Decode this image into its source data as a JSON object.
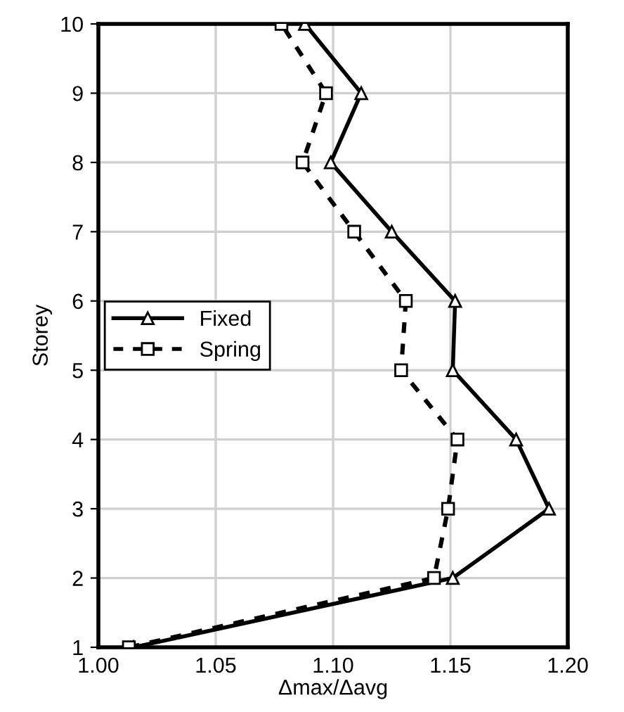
{
  "chart_data": {
    "type": "line",
    "xlabel": "Δmax/Δavg",
    "ylabel": "Storey",
    "xlim": [
      1.0,
      1.2
    ],
    "xticks": [
      {
        "value": 1.0,
        "label": "1.00"
      },
      {
        "value": 1.05,
        "label": "1.05"
      },
      {
        "value": 1.1,
        "label": "1.10"
      },
      {
        "value": 1.15,
        "label": "1.15"
      },
      {
        "value": 1.2,
        "label": "1.20"
      }
    ],
    "ylim": [
      1,
      10
    ],
    "yticks": [
      1,
      2,
      3,
      4,
      5,
      6,
      7,
      8,
      9,
      10
    ],
    "grid": true,
    "legend": "left",
    "series": [
      {
        "name": "Fixed",
        "color": "#000000",
        "marker": "triangle",
        "line_style": "solid",
        "x": [
          1.015,
          1.151,
          1.192,
          1.178,
          1.151,
          1.152,
          1.125,
          1.099,
          1.112,
          1.088
        ],
        "values": [
          1,
          2,
          3,
          4,
          5,
          6,
          7,
          8,
          9,
          10
        ]
      },
      {
        "name": "Spring",
        "color": "#000000",
        "marker": "square",
        "line_style": "dotted",
        "x": [
          1.013,
          1.143,
          1.149,
          1.153,
          1.129,
          1.131,
          1.109,
          1.087,
          1.097,
          1.078
        ],
        "values": [
          1,
          2,
          3,
          4,
          5,
          6,
          7,
          8,
          9,
          10
        ]
      }
    ]
  }
}
